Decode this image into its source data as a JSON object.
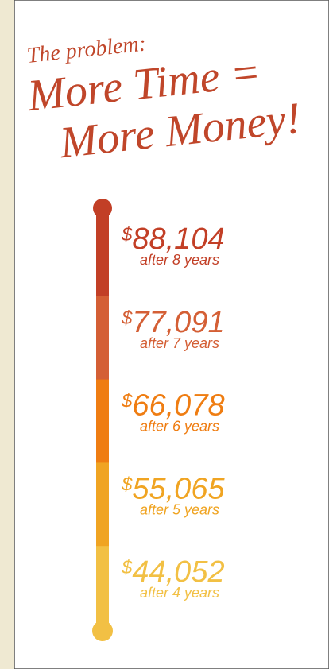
{
  "title": {
    "kicker": "The problem:",
    "line1": "More Time =",
    "line2": "More Money!"
  },
  "items": [
    {
      "currency": "$",
      "amount": "88,104",
      "label": "after 8 years",
      "color": "#c23f26"
    },
    {
      "currency": "$",
      "amount": "77,091",
      "label": "after 7 years",
      "color": "#d45f35"
    },
    {
      "currency": "$",
      "amount": "66,078",
      "label": "after 6 years",
      "color": "#ef7d12"
    },
    {
      "currency": "$",
      "amount": "55,065",
      "label": "after 5 years",
      "color": "#f0a422"
    },
    {
      "currency": "$",
      "amount": "44,052",
      "label": "after 4 years",
      "color": "#f2c044"
    }
  ]
}
